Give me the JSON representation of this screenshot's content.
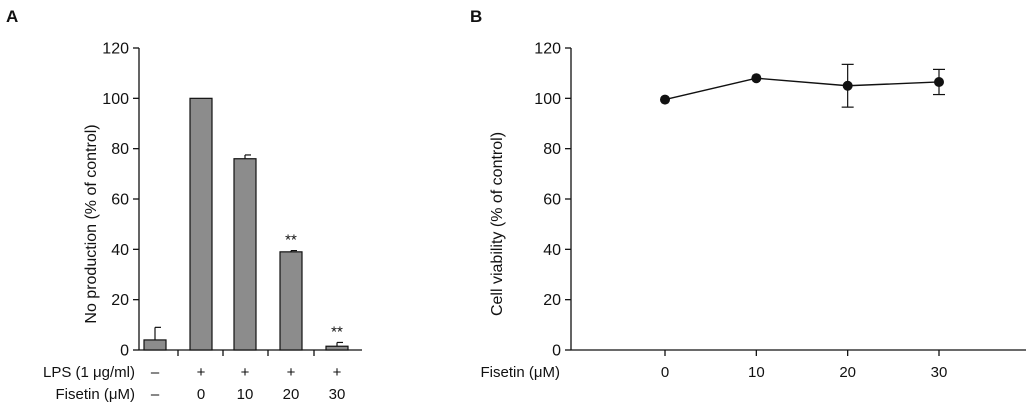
{
  "chart_data": [
    {
      "panel": "A",
      "type": "bar",
      "ylabel": "No production (% of control)",
      "ylim": [
        0,
        120
      ],
      "yticks": [
        0,
        20,
        40,
        60,
        80,
        100,
        120
      ],
      "values": [
        4,
        100,
        76,
        39,
        1.5
      ],
      "errors": [
        5,
        0,
        1.5,
        0.5,
        1.5
      ],
      "significance": [
        "",
        "",
        "",
        "**",
        "**"
      ],
      "bar_color": "#8c8c8c",
      "row_labels": [
        {
          "label": "LPS (1 μg/ml)",
          "values": [
            "–",
            "+",
            "+",
            "+",
            "+"
          ]
        },
        {
          "label": "Fisetin (μM)",
          "values": [
            "–",
            "0",
            "10",
            "20",
            "30"
          ]
        }
      ]
    },
    {
      "panel": "B",
      "type": "line",
      "ylabel": "Cell viability (% of control)",
      "xlabel": "Fisetin (μM)",
      "ylim": [
        0,
        120
      ],
      "yticks": [
        0,
        20,
        40,
        60,
        80,
        100,
        120
      ],
      "x": [
        0,
        10,
        20,
        30
      ],
      "xtick_labels": [
        "0",
        "10",
        "20",
        "30"
      ],
      "values": [
        99.5,
        108,
        105,
        106.5
      ],
      "errors": [
        0,
        0,
        8.5,
        5
      ],
      "marker_color": "#111111"
    }
  ]
}
